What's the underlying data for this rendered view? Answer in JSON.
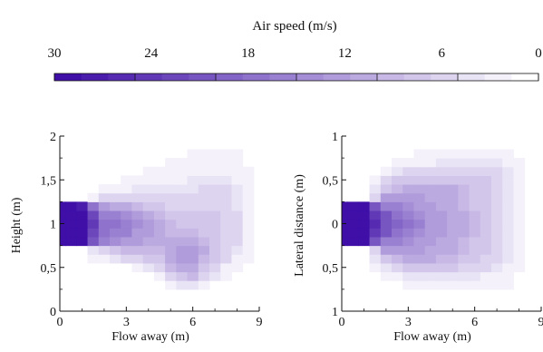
{
  "colorbar": {
    "title": "Air speed (m/s)",
    "ticks": [
      30,
      24,
      18,
      12,
      6,
      0
    ],
    "tick_labels": [
      "30",
      "24",
      "18",
      "12",
      "6",
      "0"
    ],
    "range": [
      30,
      0
    ],
    "levels": 18,
    "color_max": "#3f0fa8",
    "color_min": "#ffffff"
  },
  "chart_data": [
    {
      "type": "heatmap",
      "xlabel": "Flow away (m)",
      "ylabel": "Height (m)",
      "xlim": [
        0,
        9
      ],
      "ylim": [
        0,
        2
      ],
      "xticks": [
        0,
        3,
        6,
        9
      ],
      "xtick_labels": [
        "0",
        "3",
        "6",
        "9"
      ],
      "yticks": [
        0,
        0.5,
        1,
        1.5,
        2
      ],
      "ytick_labels": [
        "0",
        "0,5",
        "1",
        "1,5",
        "2"
      ],
      "x": [
        0,
        0.5,
        1,
        1.5,
        2,
        2.5,
        3,
        3.5,
        4,
        4.5,
        5,
        5.5,
        6,
        6.5,
        7,
        7.5,
        8,
        8.5,
        9
      ],
      "y": [
        0,
        0.1,
        0.2,
        0.3,
        0.4,
        0.5,
        0.6,
        0.7,
        0.8,
        0.9,
        1.0,
        1.1,
        1.2,
        1.3,
        1.4,
        1.5,
        1.6,
        1.7,
        1.8,
        1.9,
        2.0
      ],
      "values": [
        [
          0,
          0,
          0,
          0,
          0,
          0,
          0,
          0,
          0,
          0,
          0,
          0,
          0,
          0,
          0,
          0,
          0,
          0,
          0
        ],
        [
          0,
          0,
          0,
          0,
          0,
          0,
          0,
          0,
          0,
          0,
          0,
          0,
          0,
          0,
          0,
          0,
          0,
          0,
          0
        ],
        [
          0,
          0,
          0,
          0,
          0,
          0,
          0,
          0,
          0,
          0,
          0,
          0,
          0,
          0,
          0,
          0,
          0,
          0,
          0
        ],
        [
          0,
          0,
          0,
          0,
          0,
          0,
          0,
          0,
          0,
          0,
          2,
          4,
          4,
          2,
          0,
          0,
          0,
          0,
          0
        ],
        [
          0,
          0,
          0,
          0,
          0,
          0,
          0,
          0,
          0,
          2,
          6,
          8,
          9,
          6,
          4,
          2,
          0,
          0,
          0
        ],
        [
          0,
          0,
          0,
          0,
          0,
          0,
          0,
          2,
          4,
          6,
          9,
          11,
          11,
          8,
          6,
          3,
          2,
          0,
          0
        ],
        [
          0,
          0,
          0,
          2,
          3,
          4,
          5,
          6,
          7,
          8,
          10,
          12,
          12,
          9,
          7,
          5,
          3,
          2,
          0
        ],
        [
          0,
          0,
          0,
          4,
          6,
          8,
          9,
          9,
          9,
          9,
          10,
          12,
          12,
          10,
          8,
          6,
          4,
          2,
          0
        ],
        [
          30,
          30,
          29,
          20,
          15,
          14,
          13,
          12,
          11,
          10,
          10,
          11,
          10,
          9,
          8,
          6,
          5,
          3,
          0
        ],
        [
          30,
          30,
          30,
          23,
          18,
          16,
          15,
          13,
          12,
          10,
          9,
          9,
          9,
          8,
          7,
          6,
          5,
          3,
          0
        ],
        [
          30,
          30,
          30,
          24,
          18,
          17,
          16,
          14,
          12,
          10,
          9,
          8,
          8,
          8,
          7,
          6,
          5,
          3,
          0
        ],
        [
          30,
          30,
          30,
          22,
          16,
          15,
          14,
          12,
          11,
          9,
          8,
          7,
          7,
          7,
          7,
          6,
          5,
          3,
          0
        ],
        [
          30,
          30,
          28,
          18,
          12,
          11,
          10,
          9,
          8,
          7,
          6,
          6,
          6,
          6,
          6,
          5,
          4,
          2,
          0
        ],
        [
          0,
          0,
          0,
          2,
          5,
          6,
          6,
          6,
          6,
          5,
          5,
          5,
          5,
          5,
          5,
          5,
          4,
          2,
          0
        ],
        [
          0,
          0,
          0,
          0,
          2,
          3,
          3,
          4,
          4,
          4,
          4,
          4,
          4,
          5,
          5,
          5,
          4,
          2,
          0
        ],
        [
          0,
          0,
          0,
          0,
          0,
          0,
          2,
          2,
          3,
          3,
          3,
          3,
          4,
          4,
          4,
          4,
          3,
          2,
          0
        ],
        [
          0,
          0,
          0,
          0,
          0,
          0,
          0,
          0,
          2,
          2,
          2,
          3,
          3,
          3,
          3,
          3,
          3,
          2,
          0
        ],
        [
          0,
          0,
          0,
          0,
          0,
          0,
          0,
          0,
          0,
          0,
          2,
          2,
          2,
          2,
          3,
          3,
          2,
          0,
          0
        ],
        [
          0,
          0,
          0,
          0,
          0,
          0,
          0,
          0,
          0,
          0,
          0,
          0,
          2,
          2,
          2,
          2,
          2,
          0,
          0
        ],
        [
          0,
          0,
          0,
          0,
          0,
          0,
          0,
          0,
          0,
          0,
          0,
          0,
          0,
          0,
          0,
          0,
          0,
          0,
          0
        ],
        [
          0,
          0,
          0,
          0,
          0,
          0,
          0,
          0,
          0,
          0,
          0,
          0,
          0,
          0,
          0,
          0,
          0,
          0,
          0
        ]
      ]
    },
    {
      "type": "heatmap",
      "xlabel": "Flow away (m)",
      "ylabel": "Lateral distance (m)",
      "xlim": [
        0,
        9
      ],
      "ylim": [
        -1,
        1
      ],
      "xticks": [
        0,
        3,
        6,
        9
      ],
      "xtick_labels": [
        "0",
        "3",
        "6",
        "9"
      ],
      "yticks": [
        -1,
        -0.5,
        0,
        0.5,
        1
      ],
      "ytick_labels": [
        "1",
        "0,5",
        "0",
        "0,5",
        "1"
      ],
      "x": [
        0,
        0.5,
        1,
        1.5,
        2,
        2.5,
        3,
        3.5,
        4,
        4.5,
        5,
        5.5,
        6,
        6.5,
        7,
        7.5,
        8,
        8.5,
        9
      ],
      "y": [
        -1.0,
        -0.9,
        -0.8,
        -0.7,
        -0.6,
        -0.5,
        -0.4,
        -0.3,
        -0.2,
        -0.1,
        0.0,
        0.1,
        0.2,
        0.3,
        0.4,
        0.5,
        0.6,
        0.7,
        0.8,
        0.9,
        1.0
      ],
      "values": [
        [
          0,
          0,
          0,
          0,
          0,
          0,
          0,
          0,
          0,
          0,
          0,
          0,
          0,
          0,
          0,
          0,
          0,
          0,
          0
        ],
        [
          0,
          0,
          0,
          0,
          0,
          0,
          0,
          0,
          0,
          0,
          0,
          0,
          0,
          0,
          0,
          0,
          0,
          0,
          0
        ],
        [
          0,
          0,
          0,
          0,
          0,
          0,
          0,
          0,
          0,
          0,
          0,
          0,
          0,
          0,
          0,
          0,
          0,
          0,
          0
        ],
        [
          0,
          0,
          0,
          0,
          0,
          0,
          2,
          2,
          2,
          2,
          2,
          2,
          2,
          2,
          2,
          2,
          0,
          0,
          0
        ],
        [
          0,
          0,
          0,
          0,
          2,
          3,
          4,
          4,
          4,
          4,
          4,
          4,
          4,
          3,
          3,
          2,
          0,
          0,
          0
        ],
        [
          0,
          0,
          0,
          2,
          4,
          6,
          7,
          7,
          7,
          7,
          7,
          6,
          6,
          5,
          4,
          3,
          2,
          0,
          0
        ],
        [
          0,
          0,
          0,
          4,
          8,
          9,
          10,
          10,
          10,
          9,
          9,
          8,
          7,
          6,
          5,
          4,
          2,
          0,
          0
        ],
        [
          0,
          0,
          0,
          6,
          12,
          12,
          12,
          12,
          11,
          11,
          10,
          9,
          8,
          7,
          6,
          4,
          2,
          0,
          0
        ],
        [
          30,
          30,
          29,
          20,
          16,
          15,
          14,
          13,
          12,
          11,
          10,
          9,
          8,
          7,
          6,
          4,
          2,
          0,
          0
        ],
        [
          30,
          30,
          30,
          24,
          20,
          18,
          16,
          14,
          13,
          12,
          11,
          10,
          9,
          8,
          6,
          4,
          2,
          0,
          0
        ],
        [
          30,
          30,
          30,
          25,
          21,
          19,
          17,
          15,
          13,
          12,
          11,
          10,
          9,
          8,
          6,
          4,
          2,
          0,
          0
        ],
        [
          30,
          30,
          30,
          24,
          20,
          18,
          16,
          14,
          13,
          12,
          11,
          10,
          9,
          8,
          6,
          4,
          2,
          0,
          0
        ],
        [
          30,
          30,
          29,
          20,
          16,
          15,
          14,
          13,
          12,
          11,
          10,
          9,
          8,
          7,
          6,
          4,
          2,
          0,
          0
        ],
        [
          0,
          0,
          0,
          6,
          12,
          12,
          12,
          12,
          11,
          11,
          10,
          9,
          8,
          7,
          6,
          4,
          2,
          0,
          0
        ],
        [
          0,
          0,
          0,
          4,
          8,
          9,
          10,
          10,
          10,
          10,
          10,
          9,
          8,
          7,
          6,
          4,
          2,
          0,
          0
        ],
        [
          0,
          0,
          0,
          2,
          5,
          7,
          8,
          8,
          8,
          8,
          8,
          8,
          8,
          7,
          6,
          4,
          2,
          0,
          0
        ],
        [
          0,
          0,
          0,
          0,
          3,
          4,
          5,
          5,
          6,
          6,
          6,
          6,
          6,
          6,
          5,
          4,
          2,
          0,
          0
        ],
        [
          0,
          0,
          0,
          0,
          0,
          2,
          3,
          3,
          3,
          4,
          4,
          4,
          4,
          4,
          4,
          3,
          2,
          0,
          0
        ],
        [
          0,
          0,
          0,
          0,
          0,
          0,
          0,
          2,
          2,
          2,
          2,
          2,
          2,
          2,
          2,
          2,
          0,
          0,
          0
        ],
        [
          0,
          0,
          0,
          0,
          0,
          0,
          0,
          0,
          0,
          0,
          0,
          0,
          0,
          0,
          0,
          0,
          0,
          0,
          0
        ],
        [
          0,
          0,
          0,
          0,
          0,
          0,
          0,
          0,
          0,
          0,
          0,
          0,
          0,
          0,
          0,
          0,
          0,
          0,
          0
        ]
      ]
    }
  ]
}
